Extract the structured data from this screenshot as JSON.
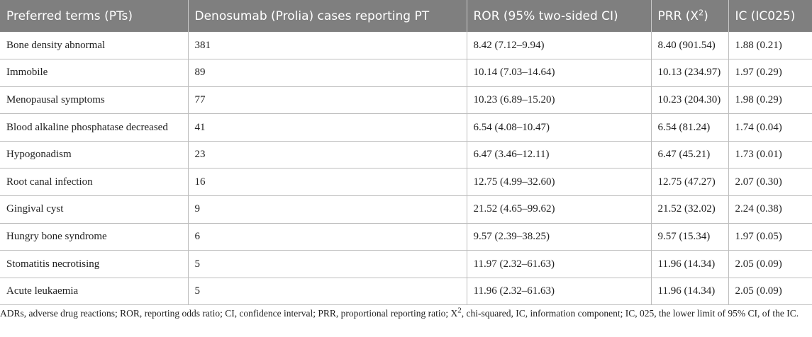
{
  "table": {
    "headers": [
      "Preferred terms (PTs)",
      "Denosumab (Prolia) cases reporting PT",
      "ROR (95% two-sided CI)",
      "PRR (X",
      "IC (IC025)"
    ],
    "prr_header_sup": "2",
    "prr_header_close": ")",
    "rows": [
      [
        "Bone density abnormal",
        "381",
        "8.42 (7.12–9.94)",
        "8.40 (901.54)",
        "1.88 (0.21)"
      ],
      [
        "Immobile",
        "89",
        "10.14 (7.03–14.64)",
        "10.13 (234.97)",
        "1.97 (0.29)"
      ],
      [
        "Menopausal symptoms",
        "77",
        "10.23 (6.89–15.20)",
        "10.23 (204.30)",
        "1.98 (0.29)"
      ],
      [
        "Blood alkaline phosphatase decreased",
        "41",
        "6.54 (4.08–10.47)",
        "6.54 (81.24)",
        "1.74 (0.04)"
      ],
      [
        "Hypogonadism",
        "23",
        "6.47 (3.46–12.11)",
        "6.47 (45.21)",
        "1.73 (0.01)"
      ],
      [
        "Root canal infection",
        "16",
        "12.75 (4.99–32.60)",
        "12.75 (47.27)",
        "2.07 (0.30)"
      ],
      [
        "Gingival cyst",
        "9",
        "21.52 (4.65–99.62)",
        "21.52 (32.02)",
        "2.24 (0.38)"
      ],
      [
        "Hungry bone syndrome",
        "6",
        "9.57 (2.39–38.25)",
        "9.57 (15.34)",
        "1.97 (0.05)"
      ],
      [
        "Stomatitis necrotising",
        "5",
        "11.97 (2.32–61.63)",
        "11.96 (14.34)",
        "2.05 (0.09)"
      ],
      [
        "Acute leukaemia",
        "5",
        "11.96 (2.32–61.63)",
        "11.96 (14.34)",
        "2.05 (0.09)"
      ]
    ]
  },
  "footnote": {
    "part1": "ADRs, adverse drug reactions; ROR, reporting odds ratio; CI, confidence interval; PRR, proportional reporting ratio; X",
    "sup": "2",
    "part2": ", chi-squared, IC, information component; IC, 025, the lower limit of 95% CI, of the IC."
  }
}
